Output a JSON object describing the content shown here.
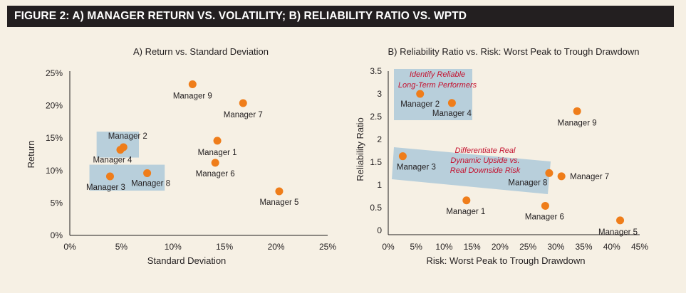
{
  "header": {
    "title": "FIGURE 2: A) MANAGER RETURN VS. VOLATILITY;  B) RELIABILITY RATIO VS. WPTD"
  },
  "colors": {
    "header_bg": "#231f20",
    "panel_bg": "#f6f0e4",
    "point": "#ef7d1a",
    "highlight_box": "#b8cfdb",
    "annotation": "#c4122f",
    "axis": "#231f20"
  },
  "chart_data": [
    {
      "type": "scatter",
      "title": "A) Return vs. Standard Deviation",
      "xlabel": "Standard Deviation",
      "ylabel": "Return",
      "xlim": [
        0,
        25
      ],
      "ylim": [
        0,
        25
      ],
      "x_ticks": [
        "0%",
        "5%",
        "10%",
        "15%",
        "20%",
        "25%"
      ],
      "y_ticks": [
        "0%",
        "5%",
        "10%",
        "15%",
        "20%",
        "25%"
      ],
      "grid": false,
      "points": [
        {
          "label": "Manager 1",
          "x": 14.3,
          "y": 14.6
        },
        {
          "label": "Manager 2",
          "x": 5.2,
          "y": 13.6
        },
        {
          "label": "Manager 3",
          "x": 3.9,
          "y": 9.1
        },
        {
          "label": "Manager 4",
          "x": 4.9,
          "y": 13.2
        },
        {
          "label": "Manager 5",
          "x": 20.3,
          "y": 6.8
        },
        {
          "label": "Manager 6",
          "x": 14.1,
          "y": 11.2
        },
        {
          "label": "Manager 7",
          "x": 16.8,
          "y": 20.4
        },
        {
          "label": "Manager 8",
          "x": 7.5,
          "y": 9.6
        },
        {
          "label": "Manager 9",
          "x": 11.9,
          "y": 23.3
        }
      ],
      "highlight_regions": [
        {
          "x": [
            2.6,
            6.7
          ],
          "y": [
            12.0,
            16.0
          ]
        },
        {
          "x": [
            1.9,
            9.2
          ],
          "y": [
            6.9,
            10.9
          ]
        }
      ]
    },
    {
      "type": "scatter",
      "title": "B) Reliability Ratio vs. Risk: Worst Peak to Trough Drawdown",
      "xlabel": "Risk: Worst Peak to Trough Drawdown",
      "ylabel": "Reliability Ratio",
      "xlim": [
        0,
        45
      ],
      "ylim": [
        0,
        3.5
      ],
      "x_ticks": [
        "0%",
        "5%",
        "10%",
        "15%",
        "20%",
        "25%",
        "30%",
        "35%",
        "40%",
        "45%"
      ],
      "y_ticks": [
        "0",
        "0.5",
        "1",
        "1.5",
        "2",
        "2.5",
        "3",
        "3.5"
      ],
      "grid": false,
      "points": [
        {
          "label": "Manager 1",
          "x": 14.0,
          "y": 0.66
        },
        {
          "label": "Manager 2",
          "x": 5.7,
          "y": 3.0
        },
        {
          "label": "Manager 3",
          "x": 2.6,
          "y": 1.63
        },
        {
          "label": "Manager 4",
          "x": 11.4,
          "y": 2.8
        },
        {
          "label": "Manager 5",
          "x": 41.5,
          "y": 0.22
        },
        {
          "label": "Manager 6",
          "x": 28.1,
          "y": 0.54
        },
        {
          "label": "Manager 7",
          "x": 31.0,
          "y": 1.19
        },
        {
          "label": "Manager 8",
          "x": 28.8,
          "y": 1.26
        },
        {
          "label": "Manager 9",
          "x": 33.8,
          "y": 2.62
        }
      ],
      "annotations": [
        {
          "lines": [
            "Identify Reliable",
            "Long-Term Performers"
          ]
        },
        {
          "lines": [
            "Differentiate Real",
            "Dynamic Upside vs.",
            "Real Downside Risk"
          ]
        }
      ]
    }
  ]
}
